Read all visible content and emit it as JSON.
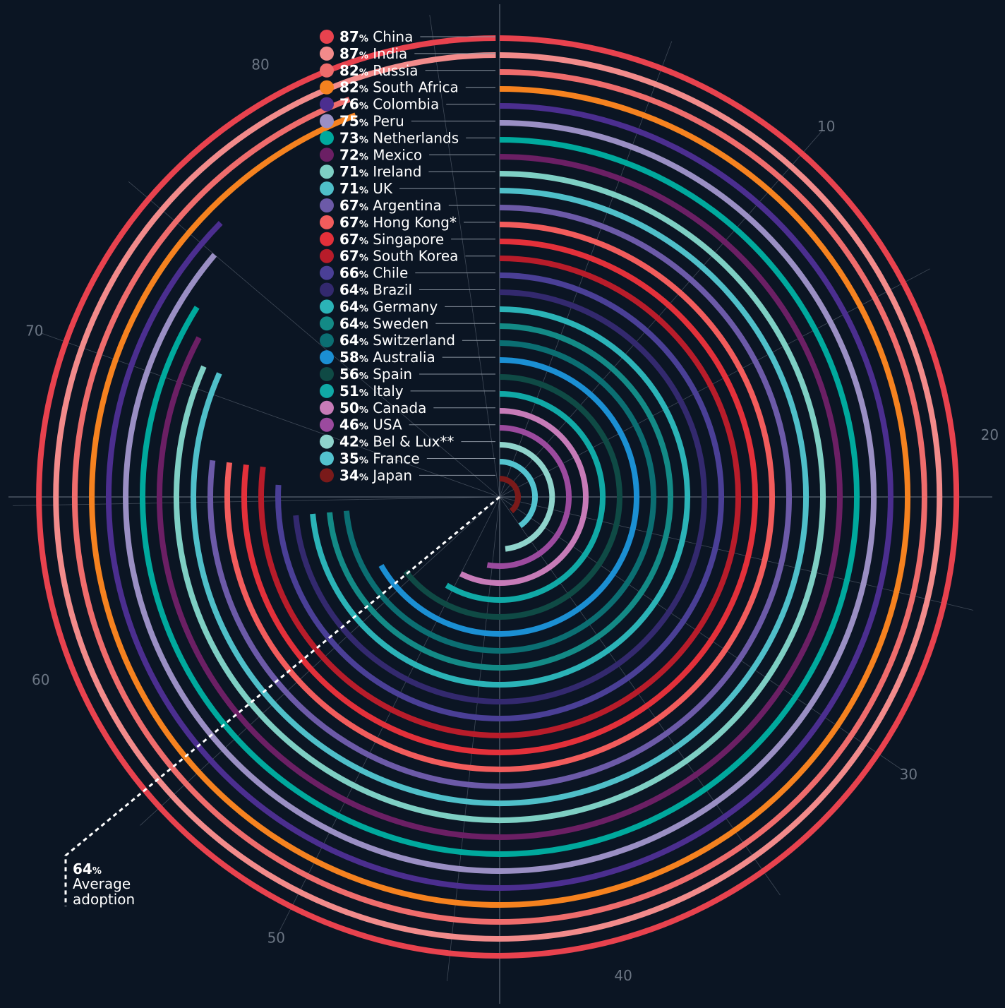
{
  "chart_data": {
    "type": "radial-bar",
    "title": "",
    "value_unit": "%",
    "scale_ticks": [
      10,
      20,
      30,
      40,
      50,
      60,
      70,
      80
    ],
    "scale_max": 87,
    "series": [
      {
        "name": "China",
        "value": 87,
        "color": "#e8424e"
      },
      {
        "name": "India",
        "value": 87,
        "color": "#f28b8b"
      },
      {
        "name": "Russia",
        "value": 82,
        "color": "#ef6c6c"
      },
      {
        "name": "South Africa",
        "value": 82,
        "color": "#f5821f"
      },
      {
        "name": "Colombia",
        "value": 76,
        "color": "#4b2e8f"
      },
      {
        "name": "Peru",
        "value": 75,
        "color": "#9a8fc4"
      },
      {
        "name": "Netherlands",
        "value": 73,
        "color": "#00a99d"
      },
      {
        "name": "Mexico",
        "value": 72,
        "color": "#6b1f64"
      },
      {
        "name": "Ireland",
        "value": 71,
        "color": "#7ecfc4"
      },
      {
        "name": "UK",
        "value": 71,
        "color": "#4fbfc9"
      },
      {
        "name": "Argentina",
        "value": 67,
        "color": "#6c5aa8"
      },
      {
        "name": "Hong Kong*",
        "value": 67,
        "color": "#f25c5c"
      },
      {
        "name": "Singapore",
        "value": 67,
        "color": "#e3303a"
      },
      {
        "name": "South Korea",
        "value": 67,
        "color": "#b81c2a"
      },
      {
        "name": "Chile",
        "value": 66,
        "color": "#4a3f96"
      },
      {
        "name": "Brazil",
        "value": 64,
        "color": "#33296e"
      },
      {
        "name": "Germany",
        "value": 64,
        "color": "#2bb3b7"
      },
      {
        "name": "Sweden",
        "value": 64,
        "color": "#138a86"
      },
      {
        "name": "Switzerland",
        "value": 64,
        "color": "#0b6e72"
      },
      {
        "name": "Australia",
        "value": 58,
        "color": "#1b8fd3"
      },
      {
        "name": "Spain",
        "value": 56,
        "color": "#0f4a45"
      },
      {
        "name": "Italy",
        "value": 51,
        "color": "#10a9a6"
      },
      {
        "name": "Canada",
        "value": 50,
        "color": "#c77bb8"
      },
      {
        "name": "USA",
        "value": 46,
        "color": "#9b4a9e"
      },
      {
        "name": "Bel & Lux**",
        "value": 42,
        "color": "#8fd4cc"
      },
      {
        "name": "France",
        "value": 35,
        "color": "#53c3cf"
      },
      {
        "name": "Japan",
        "value": 34,
        "color": "#7a1a1a"
      }
    ],
    "average": {
      "value": "64",
      "unit": "%",
      "label_line1": "Average",
      "label_line2": "adoption"
    }
  },
  "colors": {
    "background": "#0b1523",
    "grid": "#6b7583",
    "text": "#ffffff"
  }
}
